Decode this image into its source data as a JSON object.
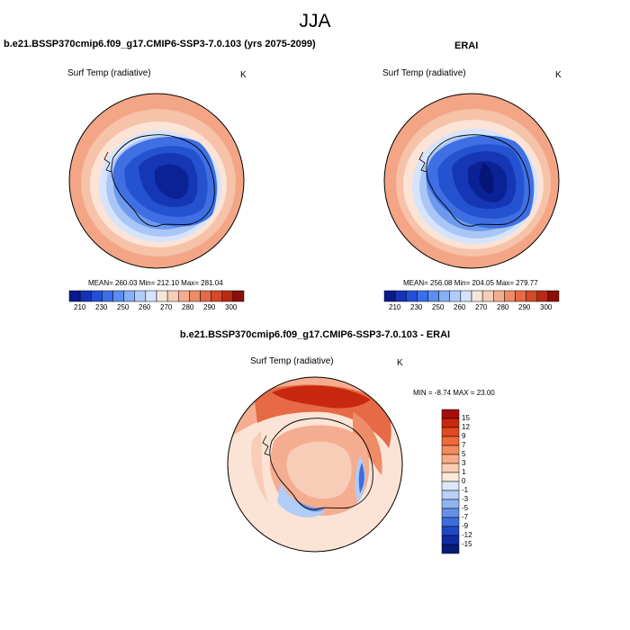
{
  "page_title": "JJA",
  "panels": [
    {
      "title": "b.e21.BSSP370cmip6.f09_g17.CMIP6-SSP3-7.0.103 (yrs 2075-2099)",
      "variable": "Surf Temp (radiative)",
      "units": "K",
      "stats": "MEAN= 260.03  Min= 212.10  Max= 281.04"
    },
    {
      "title": "ERAI",
      "variable": "Surf Temp (radiative)",
      "units": "K",
      "stats": "MEAN= 256.08  Min= 204.05  Max= 279.77"
    },
    {
      "title": "b.e21.BSSP370cmip6.f09_g17.CMIP6-SSP3-7.0.103 - ERAI",
      "variable": "Surf Temp (radiative)",
      "units": "K",
      "stats": "MIN =  -8.74 MAX =  23.00"
    }
  ],
  "abs_colorbar": {
    "ticks": [
      "210",
      "230",
      "250",
      "260",
      "270",
      "280",
      "290",
      "300"
    ],
    "colors": [
      "#0a1a8c",
      "#1533b8",
      "#2250d8",
      "#3a6fe8",
      "#5b8ef0",
      "#86aff5",
      "#b0ccf8",
      "#d6e4fb",
      "#f5e6da",
      "#f8cdb8",
      "#f5ad90",
      "#ee8c68",
      "#e56a45",
      "#d44a28",
      "#b82a14",
      "#8a0f06"
    ]
  },
  "diff_colorbar": {
    "labels": [
      "15",
      "12",
      "9",
      "7",
      "5",
      "3",
      "1",
      "0",
      "-1",
      "-3",
      "-5",
      "-7",
      "-9",
      "-12",
      "-15"
    ],
    "colors": [
      "#a50f0a",
      "#c8280e",
      "#e04a20",
      "#ee6a3a",
      "#f58a5a",
      "#f8ac86",
      "#fbcdb3",
      "#fbe9dc",
      "#dce8fa",
      "#b8d0f6",
      "#8fb2f0",
      "#6690e8",
      "#3d6ddd",
      "#1f48c4",
      "#0f2ca4",
      "#061a78"
    ]
  }
}
